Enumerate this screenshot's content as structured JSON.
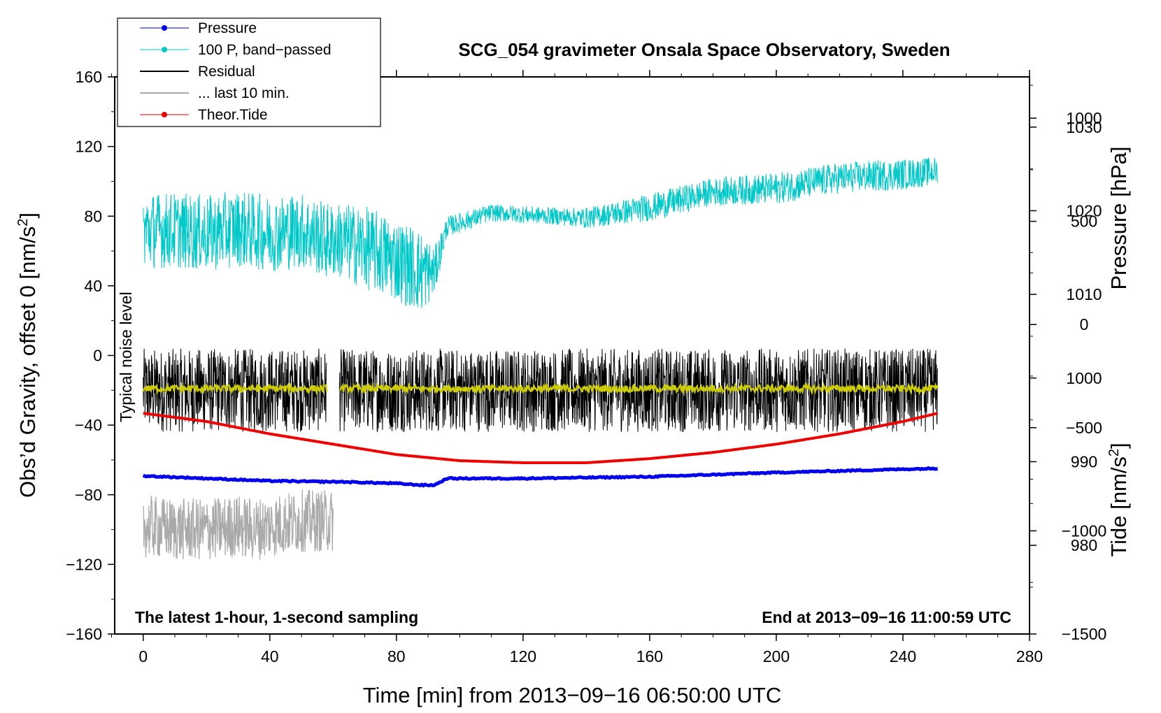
{
  "chart_data": {
    "type": "line",
    "title": "SCG_054 gravimeter Onsala Space Observatory, Sweden",
    "xlabel": "Time [min] from 2013−09−16 06:50:00 UTC",
    "ylabel_left": "Obs’d Gravity, offset 0 [nm/s",
    "ylabel_left_sup": "2",
    "ylabel_left_tail": "]",
    "ylabel_right_pressure": "Pressure [hPa]",
    "ylabel_right_tide": "Tide [nm/s",
    "ylabel_right_tide_sup": "2",
    "ylabel_right_tide_tail": "]",
    "xlim": [
      -9,
      280
    ],
    "ylim_left": [
      -160,
      160
    ],
    "pressure_lim": [
      969.4,
      1036.0
    ],
    "tide_lim": [
      -1500,
      1200
    ],
    "x_ticks": [
      "0",
      "40",
      "80",
      "120",
      "160",
      "200",
      "240",
      "280"
    ],
    "x_tick_values": [
      0,
      40,
      80,
      120,
      160,
      200,
      240,
      280
    ],
    "y_ticks_left": [
      "160",
      "120",
      "80",
      "40",
      "0",
      "−40",
      "−80",
      "−120",
      "−160"
    ],
    "y_tick_values_left": [
      160,
      120,
      80,
      40,
      0,
      -40,
      -80,
      -120,
      -160
    ],
    "pressure_ticks": [
      "1030",
      "1020",
      "1010",
      "1000",
      "990",
      "980"
    ],
    "pressure_tick_values": [
      1030,
      1020,
      1010,
      1000,
      990,
      980
    ],
    "tide_ticks": [
      "1000",
      "500",
      "0",
      "−500",
      "−1000",
      "−1500"
    ],
    "tide_tick_values": [
      1000,
      500,
      0,
      -500,
      -1000,
      -1500
    ],
    "annotations": {
      "noise_level": "Typical noise level",
      "bottom_left": "The latest 1-hour, 1-second sampling",
      "bottom_right": "End at 2013−09−16 11:00:59 UTC"
    },
    "legend": [
      {
        "name": "Pressure",
        "color": "#0000ee",
        "marker": true
      },
      {
        "name": "100 P, band−passed",
        "color": "#00c8c8",
        "marker": true
      },
      {
        "name": "Residual",
        "color": "#000000",
        "marker": false
      },
      {
        "name": "... last 10 min.",
        "color": "#aaaaaa",
        "marker": false
      },
      {
        "name": "Theor.Tide",
        "color": "#ee0000",
        "marker": true
      }
    ],
    "series": [
      {
        "name": "Pressure",
        "axis": "pressure",
        "color": "#0000ee",
        "x": [
          0,
          20,
          40,
          58,
          62,
          80,
          88,
          92,
          96,
          120,
          160,
          200,
          240,
          251
        ],
        "y": [
          988.3,
          988.0,
          987.7,
          987.6,
          987.6,
          987.4,
          987.2,
          987.2,
          988.0,
          988.0,
          988.2,
          988.7,
          989.1,
          989.2
        ]
      },
      {
        "name": "100 P, band−passed",
        "axis": "left",
        "color": "#00c8c8",
        "x": [
          0,
          10,
          20,
          30,
          40,
          50,
          58,
          62,
          70,
          80,
          88,
          92,
          96,
          110,
          130,
          140,
          150,
          160,
          180,
          200,
          220,
          240,
          251
        ],
        "y": [
          72,
          72,
          70,
          73,
          70,
          72,
          66,
          66,
          62,
          55,
          48,
          48,
          74,
          82,
          80,
          79,
          82,
          85,
          94,
          96,
          102,
          104,
          106
        ],
        "noise": [
          22,
          22,
          22,
          22,
          22,
          22,
          22,
          22,
          24,
          24,
          24,
          14,
          6,
          5,
          5,
          6,
          7,
          8,
          8,
          9,
          9,
          9,
          8
        ]
      },
      {
        "name": "Residual",
        "axis": "left",
        "color": "#000000",
        "x": [
          0,
          58,
          60,
          61,
          62,
          251
        ],
        "y": [
          -20,
          -20,
          null,
          null,
          -20,
          -20
        ],
        "noise_amplitude": 24
      },
      {
        "name": "Smoothed residual",
        "axis": "left",
        "color": "#cccc00",
        "x": [
          0,
          58,
          60,
          61,
          62,
          251
        ],
        "y": [
          -19,
          -19,
          null,
          null,
          -19,
          -19
        ],
        "noise_amplitude": 2
      },
      {
        "name": "... last 10 min.",
        "axis": "left",
        "color": "#aaaaaa",
        "x": [
          0,
          10,
          20,
          30,
          35,
          40,
          50,
          60
        ],
        "y": [
          -98,
          -100,
          -100,
          -98,
          -100,
          -98,
          -95,
          -95
        ],
        "noise_amplitude": 18
      },
      {
        "name": "Theor.Tide",
        "axis": "tide",
        "color": "#ee0000",
        "x": [
          0,
          20,
          40,
          60,
          80,
          100,
          120,
          140,
          160,
          180,
          200,
          220,
          240,
          251
        ],
        "y": [
          -430,
          -470,
          -530,
          -580,
          -630,
          -660,
          -670,
          -670,
          -650,
          -620,
          -580,
          -530,
          -470,
          -430
        ]
      }
    ]
  }
}
